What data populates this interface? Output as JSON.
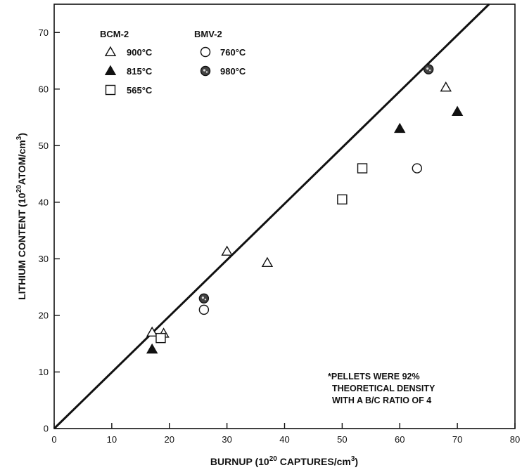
{
  "chart_data": {
    "type": "scatter",
    "xlabel": "BURNUP (10",
    "xlabel_sup": "20",
    "xlabel_rest": " CAPTURES/cm",
    "xlabel_sup2": "3",
    "xlabel_end": ")",
    "ylabel": "LITHIUM CONTENT (10",
    "ylabel_sup": "20",
    "ylabel_rest": "ATOM/cm",
    "ylabel_sup2": "3",
    "ylabel_end": ")",
    "xlim": [
      0,
      80
    ],
    "ylim": [
      0,
      75
    ],
    "xticks": [
      "0",
      "10",
      "20",
      "30",
      "40",
      "50",
      "60",
      "70",
      "80"
    ],
    "yticks": [
      "0",
      "10",
      "20",
      "30",
      "40",
      "50",
      "60",
      "70"
    ],
    "legend_groups": [
      "BCM-2",
      "BMV-2"
    ],
    "line": {
      "x": [
        0,
        75.5
      ],
      "y": [
        0,
        75
      ]
    },
    "series": [
      {
        "name": "900°C",
        "group": "BCM-2",
        "marker": "triangle-open",
        "points": [
          [
            17,
            17
          ],
          [
            19,
            16.8
          ],
          [
            30,
            31.3
          ],
          [
            37,
            29.3
          ],
          [
            68,
            60.3
          ]
        ]
      },
      {
        "name": "815°C",
        "group": "BCM-2",
        "marker": "triangle-filled",
        "points": [
          [
            17,
            14
          ],
          [
            60,
            53
          ],
          [
            70,
            56
          ]
        ]
      },
      {
        "name": "565°C",
        "group": "BCM-2",
        "marker": "square-open",
        "points": [
          [
            18.5,
            16
          ],
          [
            50,
            40.5
          ],
          [
            53.5,
            46
          ]
        ]
      },
      {
        "name": "760°C",
        "group": "BMV-2",
        "marker": "circle-open",
        "points": [
          [
            26,
            21
          ],
          [
            63,
            46
          ]
        ]
      },
      {
        "name": "980°C",
        "group": "BMV-2",
        "marker": "circle-dotted",
        "points": [
          [
            26,
            23
          ],
          [
            65,
            63.5
          ]
        ]
      }
    ],
    "legend_labels": [
      "900°C",
      "815°C",
      "565°C",
      "760°C",
      "980°C"
    ],
    "annotation": [
      "*PELLETS WERE 92%",
      "THEORETICAL DENSITY",
      "WITH A B/C RATIO OF 4"
    ],
    "grid": false
  }
}
